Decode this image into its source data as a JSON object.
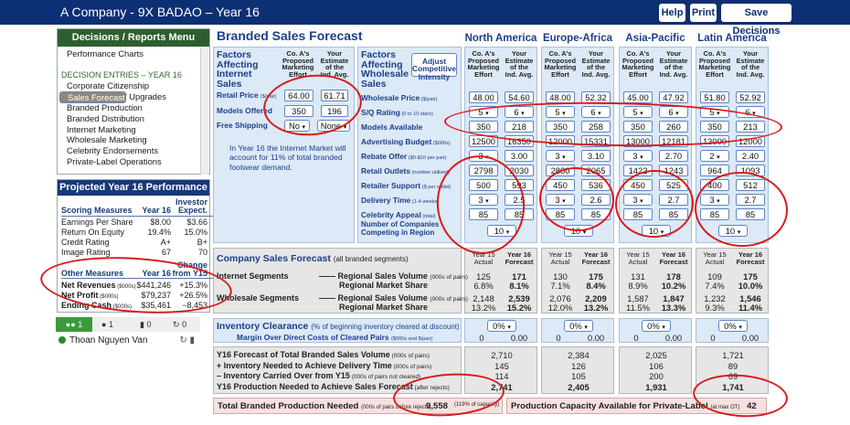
{
  "header": {
    "title": "A Company - 9X BADAO – Year 16",
    "help": "Help",
    "print": "Print",
    "save": "Save Decisions"
  },
  "menu": {
    "title": "Decisions / Reports Menu",
    "items": [
      {
        "label": "Performance Charts",
        "kind": "item"
      },
      {
        "label": "",
        "kind": "gap"
      },
      {
        "label": "DECISION  ENTRIES – YEAR 16",
        "kind": "section"
      },
      {
        "label": "Corporate Citizenship",
        "kind": "item"
      },
      {
        "label": "Sales Forecast",
        "kind": "selected"
      },
      {
        "label": "Plant Capacity / Upgrades",
        "kind": "item"
      },
      {
        "label": "Branded Production",
        "kind": "item"
      },
      {
        "label": "Branded Distribution",
        "kind": "item"
      },
      {
        "label": "Internet Marketing",
        "kind": "item"
      },
      {
        "label": "Wholesale Marketing",
        "kind": "item"
      },
      {
        "label": "Celebrity Endorsements",
        "kind": "item"
      },
      {
        "label": "Private-Label Operations",
        "kind": "item"
      }
    ]
  },
  "performance": {
    "title": "Projected Year 16 Performance",
    "scoring_header": "Scoring Measures",
    "year_header": "Year 16",
    "investor_header": "Investor",
    "expect_header": "Expect.",
    "scoring": [
      [
        "Earnings Per Share",
        "$8.00",
        "$3.66"
      ],
      [
        "Return On Equity",
        "19.4%",
        "15.0%"
      ],
      [
        "Credit Rating",
        "A+",
        "B+"
      ],
      [
        "Image Rating",
        "67",
        "70"
      ]
    ],
    "other_header": "Other Measures",
    "change_header": "Change",
    "from_header": "from Y15",
    "other": [
      [
        "Net Revenues",
        "($000s)",
        "$441,246",
        "+15.3%"
      ],
      [
        "Net Profit",
        "($000s)",
        "$79,237",
        "+26.5%"
      ],
      [
        "Ending Cash",
        "($000s)",
        "$35,461",
        "−8,453"
      ]
    ]
  },
  "chat": {
    "users": "1",
    "messages": "1",
    "mic": "0",
    "retweet": "0",
    "user_name": "Thoan Nguyen Van"
  },
  "page": {
    "title": "Branded Sales Forecast"
  },
  "regions": [
    "North America",
    "Europe-Africa",
    "Asia-Pacific",
    "Latin America"
  ],
  "col_headers": {
    "proposed": "Co. A's\nProposed\nMarketing\nEffort",
    "estimate": "Your\nEstimate\nof the\nInd. Avg."
  },
  "internet": {
    "title": "Factors\nAffecting\nInternet\nSales",
    "retail_price_label": "Retail Price",
    "retail_price_unit": "($/pair)",
    "retail_price": "64.00",
    "retail_price_avg": "61.71",
    "models_label": "Models Offered",
    "models": "350",
    "models_avg": "196",
    "shipping_label": "Free Shipping",
    "shipping": "No",
    "shipping_avg": "None",
    "note": "In Year 16 the Internet Market will account for 11% of total branded footwear demand."
  },
  "wholesale": {
    "title": "Factors\nAffecting\nWholesale\nSales",
    "adjust_label": "Adjust\nCompetitive\nIntensity",
    "rows": [
      {
        "label": "Wholesale Price",
        "unit": "($/pair)"
      },
      {
        "label": "S/Q Rating",
        "unit": "(0 to 10 stars)"
      },
      {
        "label": "Models Available",
        "unit": ""
      },
      {
        "label": "Advertising Budget",
        "unit": "($000s)"
      },
      {
        "label": "Rebate Offer",
        "unit": "($0-$10 per pair)"
      },
      {
        "label": "Retail Outlets",
        "unit": "(number utilized)"
      },
      {
        "label": "Retailer Support",
        "unit": "($ per outlet)"
      },
      {
        "label": "Delivery Time",
        "unit": "(1-4 weeks)"
      },
      {
        "label": "Celebrity Appeal",
        "unit": "(total)"
      }
    ],
    "competing_label": "Number of Companies\nCompeting in Region",
    "values": [
      {
        "proposed": [
          "48.00",
          "5",
          "350",
          "12500",
          "3",
          "2798",
          "500",
          "3",
          "85"
        ],
        "avg": [
          "54.60",
          "6",
          "218",
          "16350",
          "3.00",
          "2030",
          "593",
          "2.5",
          "85"
        ],
        "competing": "10"
      },
      {
        "proposed": [
          "48.00",
          "5",
          "350",
          "12000",
          "3",
          "2880",
          "450",
          "3",
          "85"
        ],
        "avg": [
          "52.32",
          "6",
          "258",
          "15331",
          "3.10",
          "2065",
          "536",
          "2.6",
          "85"
        ],
        "competing": "10"
      },
      {
        "proposed": [
          "45.00",
          "5",
          "350",
          "13000",
          "3",
          "1422",
          "450",
          "3",
          "85"
        ],
        "avg": [
          "47.92",
          "6",
          "260",
          "12181",
          "2.70",
          "1243",
          "525",
          "2.7",
          "85"
        ],
        "competing": "10"
      },
      {
        "proposed": [
          "51.80",
          "5",
          "350",
          "13000",
          "2",
          "964",
          "400",
          "3",
          "85"
        ],
        "avg": [
          "52.92",
          "6",
          "213",
          "12000",
          "2.40",
          "1093",
          "512",
          "2.7",
          "85"
        ],
        "competing": "10"
      }
    ]
  },
  "company_forecast": {
    "title": "Company Sales Forecast",
    "subtitle": "(all branded segments)",
    "internet_label": "Internet Segments",
    "wholesale_label": "Wholesale Segments",
    "volume_label": "Regional Sales Volume",
    "volume_unit": "(000s of pairs)",
    "share_label": "Regional Market Share",
    "actual_label": "Year 15\nActual",
    "forecast_label": "Year 16\nForecast",
    "regions": [
      {
        "i_vol": [
          "125",
          "171"
        ],
        "i_share": [
          "6.8%",
          "8.1%"
        ],
        "w_vol": [
          "2,148",
          "2,539"
        ],
        "w_share": [
          "13.2%",
          "15.2%"
        ]
      },
      {
        "i_vol": [
          "130",
          "175"
        ],
        "i_share": [
          "7.1%",
          "8.4%"
        ],
        "w_vol": [
          "2,076",
          "2,209"
        ],
        "w_share": [
          "12.0%",
          "13.2%"
        ]
      },
      {
        "i_vol": [
          "131",
          "178"
        ],
        "i_share": [
          "8.9%",
          "10.2%"
        ],
        "w_vol": [
          "1,587",
          "1,847"
        ],
        "w_share": [
          "11.5%",
          "13.3%"
        ]
      },
      {
        "i_vol": [
          "109",
          "175"
        ],
        "i_share": [
          "7.4%",
          "10.0%"
        ],
        "w_vol": [
          "1,232",
          "1,546"
        ],
        "w_share": [
          "9.3%",
          "11.4%"
        ]
      }
    ]
  },
  "clearance": {
    "title": "Inventory Clearance",
    "subtitle": "(% of beginning inventory cleared at discount)",
    "margin_label": "Margin Over Direct Costs of Cleared Pairs",
    "margin_unit": "($000s and $/pair)",
    "regions": [
      [
        "0%",
        "0",
        "0.00"
      ],
      [
        "0%",
        "0",
        "0.00"
      ],
      [
        "0%",
        "0",
        "0.00"
      ],
      [
        "0%",
        "0",
        "0.00"
      ]
    ]
  },
  "totals": {
    "rows": [
      {
        "label": "Y16 Forecast of Total Branded Sales Volume",
        "unit": "(000s of pairs)"
      },
      {
        "label": "+ Inventory Needed to Achieve Delivery Time",
        "unit": "(000s of pairs)"
      },
      {
        "label": "– Inventory Carried Over from Y15",
        "unit": "(000s of pairs not cleared)"
      },
      {
        "label": "Y16 Production Needed to Achieve Sales Forecast",
        "unit": "(after rejects)"
      }
    ],
    "regions": [
      [
        "2,710",
        "145",
        "114",
        "2,741"
      ],
      [
        "2,384",
        "126",
        "105",
        "2,405"
      ],
      [
        "2,025",
        "106",
        "200",
        "1,931"
      ],
      [
        "1,721",
        "89",
        "69",
        "1,741"
      ]
    ]
  },
  "production": {
    "label": "Total Branded Production Needed",
    "unit": "(000s of pairs before rejects)",
    "value": "9,558",
    "pct": "(119% of capacity)",
    "private_label": "Production Capacity Available for Private-Label",
    "private_unit": "(at max OT)",
    "private_value": "42"
  },
  "colors": {
    "navy": "#0d2f73",
    "green": "#2e5e2e",
    "blue_text": "#1c3f8a",
    "light_blue": "#dce9f6",
    "gray": "#e6e6e6",
    "pink": "#f6e1e1",
    "annotation": "#d81b1b"
  }
}
